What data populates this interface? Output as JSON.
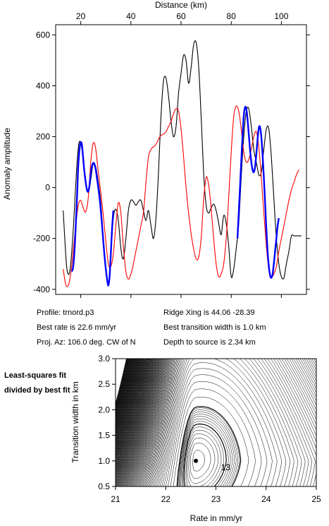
{
  "chart_data": [
    {
      "type": "line",
      "title": "",
      "xlabel": "Distance (km)",
      "ylabel": "Anomaly amplitude",
      "x_axis_position": "top",
      "xlim": [
        10,
        110
      ],
      "ylim": [
        -420,
        640
      ],
      "xticks": [
        20,
        40,
        60,
        80,
        100
      ],
      "yticks": [
        -400,
        -200,
        0,
        200,
        400,
        600
      ],
      "grid": false,
      "series": [
        {
          "color": "#000000",
          "x": [
            13,
            14,
            14.5,
            15,
            15.5,
            16,
            16.8,
            17.6,
            18.4,
            19.2,
            20,
            21,
            22,
            23,
            24,
            25,
            26,
            27,
            28,
            29,
            30,
            31,
            32,
            33,
            34,
            35,
            36,
            37,
            38,
            39,
            40,
            41,
            42,
            43,
            44,
            45,
            46,
            47,
            48,
            49,
            50,
            51,
            52,
            53,
            54,
            55,
            56,
            57,
            58,
            59,
            60,
            61,
            62,
            63,
            64,
            65,
            66,
            67,
            68,
            69,
            70,
            71,
            72,
            73,
            74,
            75,
            76,
            77,
            78,
            79,
            80,
            81,
            82,
            83,
            84,
            85,
            86,
            87,
            88,
            89,
            90,
            91,
            92,
            93,
            94,
            95,
            96,
            97,
            98,
            99,
            100,
            101,
            102,
            103,
            104,
            105,
            106,
            107,
            108
          ],
          "y": [
            -90,
            -260,
            -320,
            -340,
            -335,
            -300,
            -200,
            -60,
            80,
            170,
            175,
            110,
            20,
            -20,
            30,
            95,
            80,
            20,
            -60,
            -200,
            -320,
            -380,
            -260,
            -120,
            -85,
            -130,
            -240,
            -280,
            -200,
            -90,
            -50,
            -55,
            -70,
            -55,
            -50,
            -90,
            -130,
            -90,
            -150,
            -200,
            -120,
            60,
            280,
            420,
            430,
            360,
            260,
            200,
            240,
            370,
            450,
            520,
            500,
            410,
            470,
            560,
            570,
            480,
            280,
            60,
            -70,
            -100,
            -80,
            -65,
            -90,
            -140,
            -185,
            -110,
            -140,
            -230,
            -350,
            -320,
            -240,
            -140,
            40,
            200,
            300,
            310,
            240,
            150,
            100,
            50,
            60,
            150,
            230,
            230,
            120,
            -40,
            -200,
            -300,
            -350,
            -355,
            -300,
            -250,
            -190,
            -190,
            -190,
            -190,
            -190
          ],
          "x_plot": [
            13,
            14,
            15,
            16,
            17,
            18,
            19,
            20,
            21,
            22,
            23,
            24,
            25,
            26,
            27,
            28,
            29,
            30,
            31,
            32,
            33,
            34,
            35,
            36,
            37,
            38,
            39,
            40,
            41,
            42,
            43,
            44,
            45,
            46,
            47,
            48,
            49,
            50,
            51,
            52,
            53,
            54,
            55,
            56,
            57,
            58,
            59,
            60,
            61,
            62,
            63,
            64,
            65,
            66,
            67,
            68,
            69,
            70,
            71,
            72,
            73,
            74,
            75,
            76,
            77,
            78,
            79,
            80,
            81,
            82,
            83,
            84,
            85,
            86,
            87,
            88,
            89,
            90,
            91,
            92,
            93,
            94,
            95,
            96,
            97,
            98,
            99,
            100,
            101,
            102,
            103,
            104,
            105,
            106,
            107,
            108
          ]
        },
        {
          "color": "#ff0000",
          "x": [
            13,
            14,
            15,
            16,
            17,
            18,
            19,
            20,
            21,
            22,
            23,
            24,
            25,
            26,
            27,
            28,
            29,
            30,
            31,
            32,
            33,
            34,
            35,
            36,
            37,
            38,
            39,
            40,
            41,
            42,
            43,
            44,
            45,
            46,
            47,
            48,
            49,
            50,
            51,
            52,
            53,
            54,
            55,
            56,
            57,
            58,
            59,
            60,
            61,
            62,
            63,
            64,
            65,
            66,
            67,
            68,
            69,
            70,
            71,
            72,
            73,
            74,
            75,
            76,
            77,
            78,
            79,
            80,
            81,
            82,
            83,
            84,
            85,
            86,
            87,
            88,
            89,
            90,
            91,
            92,
            93,
            94,
            95,
            96,
            97,
            98,
            99,
            100,
            101,
            102,
            103,
            104,
            105,
            106,
            107
          ],
          "y": [
            -320,
            -380,
            -385,
            -340,
            -250,
            -150,
            -70,
            -50,
            -80,
            -95,
            -40,
            100,
            175,
            150,
            60,
            -20,
            -110,
            -210,
            -300,
            -310,
            -260,
            -150,
            -60,
            -100,
            -230,
            -330,
            -360,
            -340,
            -300,
            -250,
            -200,
            -150,
            -100,
            20,
            120,
            150,
            160,
            170,
            190,
            205,
            210,
            220,
            240,
            260,
            290,
            310,
            300,
            230,
            120,
            0,
            -100,
            -180,
            -240,
            -280,
            -275,
            -200,
            -50,
            40,
            10,
            -80,
            -200,
            -300,
            -350,
            -340,
            -300,
            -200,
            -40,
            140,
            280,
            320,
            300,
            230,
            140,
            100,
            110,
            150,
            200,
            220,
            160,
            40,
            -100,
            -230,
            -320,
            -350,
            -340,
            -310,
            -250,
            -200,
            -150,
            -100,
            -50,
            -10,
            20,
            50,
            70
          ],
          "x_plot": []
        },
        {
          "color": "#0000ff",
          "x": [
            16.5,
            17,
            17.5,
            18,
            18.5,
            19,
            19.5,
            20,
            20.5,
            21,
            21.5,
            22,
            22.5,
            23,
            23.5,
            24,
            24.5,
            25,
            25.5,
            26,
            26.5,
            27,
            27.5,
            28,
            28.5,
            29,
            29.5,
            30,
            30.5,
            31,
            31.5,
            32,
            32.5,
            33
          ],
          "y": [
            -330,
            -310,
            -250,
            -150,
            -40,
            80,
            150,
            178,
            165,
            110,
            60,
            20,
            -10,
            -15,
            10,
            55,
            85,
            97,
            90,
            70,
            35,
            0,
            -40,
            -90,
            -150,
            -210,
            -270,
            -320,
            -360,
            -385,
            -350,
            -260,
            -160,
            -90
          ],
          "x_plot": []
        },
        {
          "color": "#0000ff",
          "x": [
            82.5,
            83,
            83.5,
            84,
            84.5,
            85,
            85.5,
            86,
            86.5,
            87,
            87.5,
            88,
            88.5,
            89,
            89.5,
            90,
            90.5,
            91,
            91.5,
            92,
            92.5,
            93,
            93.5,
            94,
            94.5,
            95,
            95.5,
            96,
            96.5,
            97,
            97.5,
            98,
            98.5,
            99
          ],
          "y": [
            -200,
            -100,
            0,
            100,
            200,
            280,
            315,
            310,
            270,
            210,
            150,
            100,
            70,
            60,
            80,
            130,
            190,
            235,
            238,
            200,
            130,
            40,
            -60,
            -160,
            -250,
            -310,
            -345,
            -355,
            -340,
            -300,
            -250,
            -200,
            -150,
            -120
          ],
          "x_plot": []
        }
      ]
    },
    {
      "type": "contour",
      "xlabel": "Rate in mm/yr",
      "ylabel": "Transition width in km",
      "xlim": [
        21,
        25
      ],
      "ylim": [
        0.5,
        3.0
      ],
      "xticks": [
        21,
        22,
        23,
        24,
        25
      ],
      "yticks": [
        0.5,
        1.0,
        1.5,
        2.0,
        2.5,
        3.0
      ],
      "grid": false,
      "best_fit": {
        "rate": 22.6,
        "width": 1.0
      },
      "contour_label": "13"
    }
  ],
  "info": {
    "profile": "Profile: trnord.p3",
    "ridge": "Ridge Xing is 44.06 -28.39",
    "best_rate": "Best rate is 22.6 mm/yr",
    "best_width": "Best transition width is 1.0 km",
    "proj_az": "Proj. Az: 106.0 deg. CW of N",
    "depth": "Depth to source is   2.34 km"
  },
  "side_note": "Least-squares fit divided by best fit"
}
